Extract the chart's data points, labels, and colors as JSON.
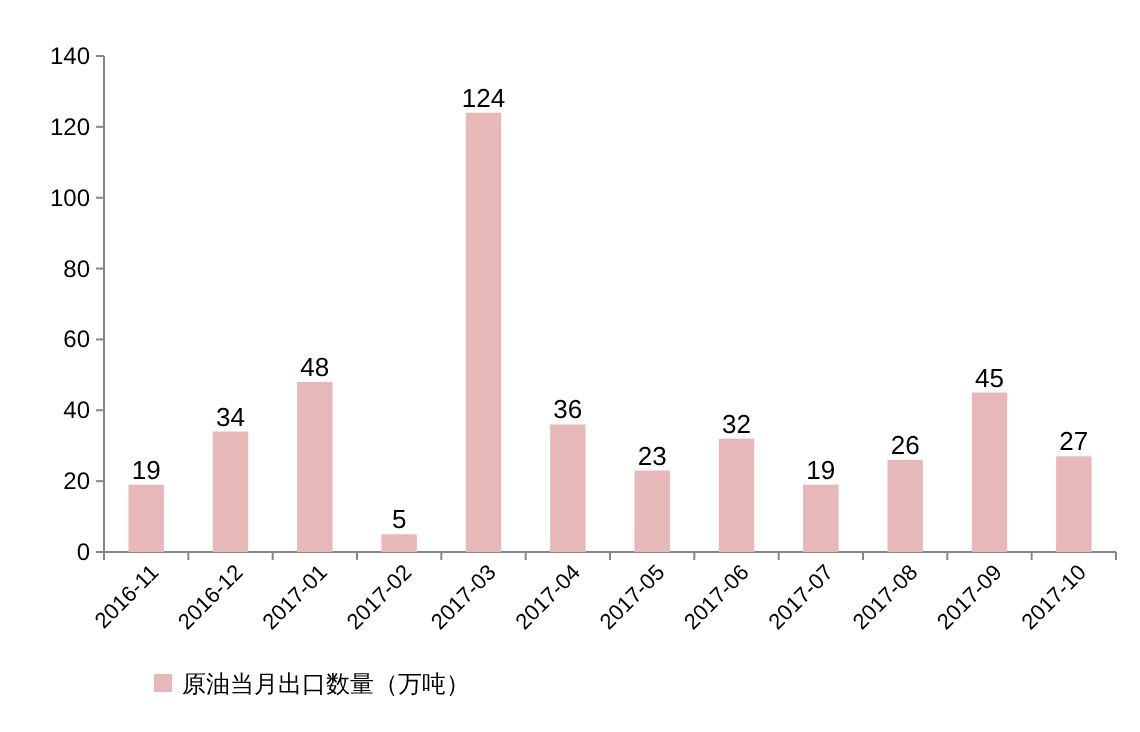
{
  "chart_data": {
    "type": "bar",
    "categories": [
      "2016-11",
      "2016-12",
      "2017-01",
      "2017-02",
      "2017-03",
      "2017-04",
      "2017-05",
      "2017-06",
      "2017-07",
      "2017-08",
      "2017-09",
      "2017-10"
    ],
    "series": [
      {
        "name": "原油当月出口数量（万吨）",
        "color": "#e6b8b7",
        "values": [
          19,
          34,
          48,
          5,
          124,
          36,
          23,
          32,
          19,
          26,
          45,
          27
        ]
      }
    ],
    "ylim": [
      0,
      140
    ],
    "yticks": [
      0,
      20,
      40,
      60,
      80,
      100,
      120,
      140
    ],
    "data_labels": true,
    "legend": "bottom",
    "grid": false
  }
}
